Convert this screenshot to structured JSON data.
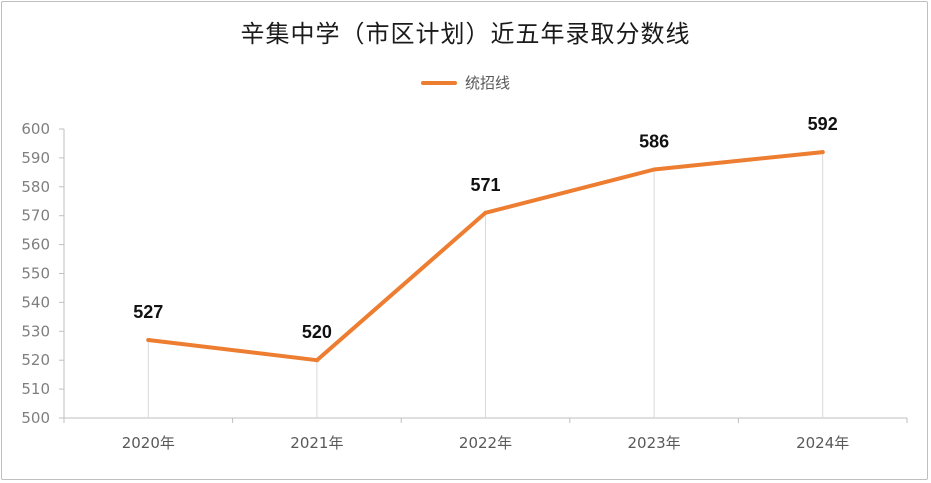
{
  "chart_data": {
    "type": "line",
    "title": "辛集中学（市区计划）近五年录取分数线",
    "categories": [
      "2020年",
      "2021年",
      "2022年",
      "2023年",
      "2024年"
    ],
    "series": [
      {
        "name": "统招线",
        "values": [
          527,
          520,
          571,
          586,
          592
        ],
        "color": "#ed7d31"
      }
    ],
    "data_labels": [
      "527",
      "520",
      "571",
      "586",
      "592"
    ],
    "y_ticks": [
      "500",
      "510",
      "520",
      "530",
      "540",
      "550",
      "560",
      "570",
      "580",
      "590",
      "600"
    ],
    "ylim": [
      500,
      600
    ],
    "grid": "vertical drop lines only",
    "legend_position": "top",
    "xlabel": "",
    "ylabel": ""
  },
  "colors": {
    "series": "#ed7d31",
    "axis": "#bfbfbf",
    "drop_line": "#d9d9d9"
  }
}
